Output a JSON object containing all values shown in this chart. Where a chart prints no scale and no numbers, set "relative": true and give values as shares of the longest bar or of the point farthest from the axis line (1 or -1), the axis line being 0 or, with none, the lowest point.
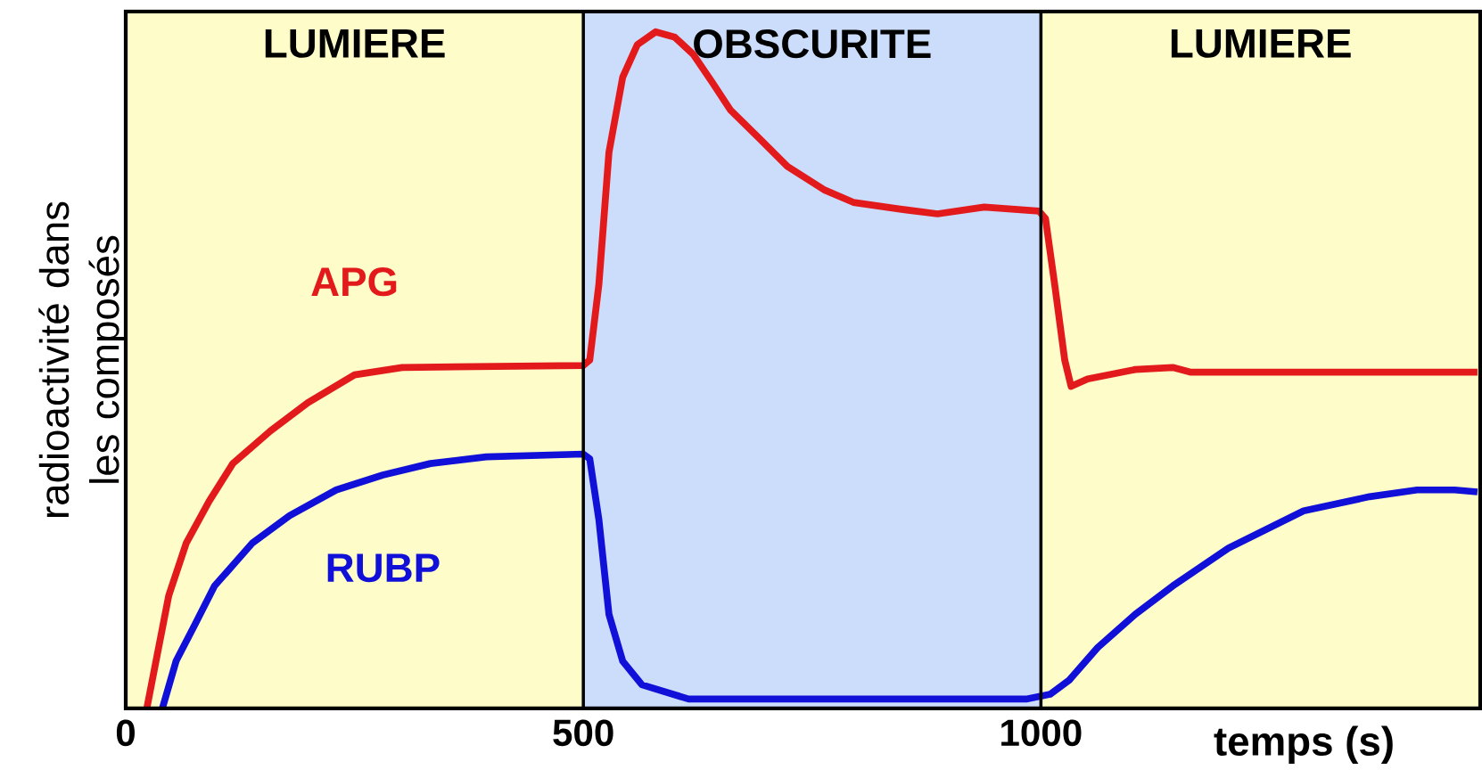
{
  "chart_data": {
    "type": "line",
    "relative": true,
    "xlabel": "temps (s)",
    "ylabel": "radioactivité dans les composés",
    "xlim": [
      0,
      1480
    ],
    "xticks": [
      0,
      500,
      1000
    ],
    "grid": "x",
    "legend": false,
    "marker": "none",
    "line_style": "solid",
    "bands": [
      {
        "axis": "x",
        "from": 0,
        "to": 500,
        "label": "LUMIERE",
        "color": "#fefcc8"
      },
      {
        "axis": "x",
        "from": 500,
        "to": 1000,
        "label": "OBSCURITE",
        "color": "#ccdcfb"
      },
      {
        "axis": "x",
        "from": 1000,
        "to": 1480,
        "label": "LUMIERE",
        "color": "#fefcc8"
      }
    ],
    "series": [
      {
        "name": "APG",
        "color": "#e31a1c",
        "x": [
          23,
          47,
          66,
          91,
          117,
          158,
          199,
          250,
          302,
          500,
          507,
          517,
          528,
          543,
          559,
          579,
          600,
          620,
          641,
          661,
          692,
          723,
          764,
          795,
          846,
          887,
          938,
          998,
          1005,
          1015,
          1026,
          1033,
          1051,
          1103,
          1144,
          1164,
          1477
        ],
        "values": [
          0,
          0.167,
          0.244,
          0.306,
          0.362,
          0.41,
          0.452,
          0.493,
          0.504,
          0.507,
          0.515,
          0.627,
          0.822,
          0.933,
          0.981,
          1,
          0.992,
          0.967,
          0.925,
          0.884,
          0.843,
          0.801,
          0.766,
          0.748,
          0.738,
          0.731,
          0.741,
          0.735,
          0.724,
          0.627,
          0.515,
          0.476,
          0.487,
          0.501,
          0.504,
          0.497,
          0.497
        ]
      },
      {
        "name": "RUBP",
        "color": "#1010d8",
        "x": [
          40,
          55,
          76,
          97,
          138,
          179,
          230,
          281,
          333,
          394,
          500,
          507,
          517,
          528,
          543,
          564,
          615,
          897,
          985,
          1010,
          1031,
          1062,
          1103,
          1144,
          1205,
          1287,
          1359,
          1411,
          1452,
          1477
        ],
        "values": [
          0,
          0.07,
          0.125,
          0.181,
          0.244,
          0.285,
          0.323,
          0.345,
          0.362,
          0.372,
          0.376,
          0.369,
          0.279,
          0.139,
          0.07,
          0.035,
          0.014,
          0.014,
          0.014,
          0.021,
          0.042,
          0.09,
          0.139,
          0.181,
          0.237,
          0.292,
          0.313,
          0.323,
          0.323,
          0.32
        ]
      }
    ]
  }
}
